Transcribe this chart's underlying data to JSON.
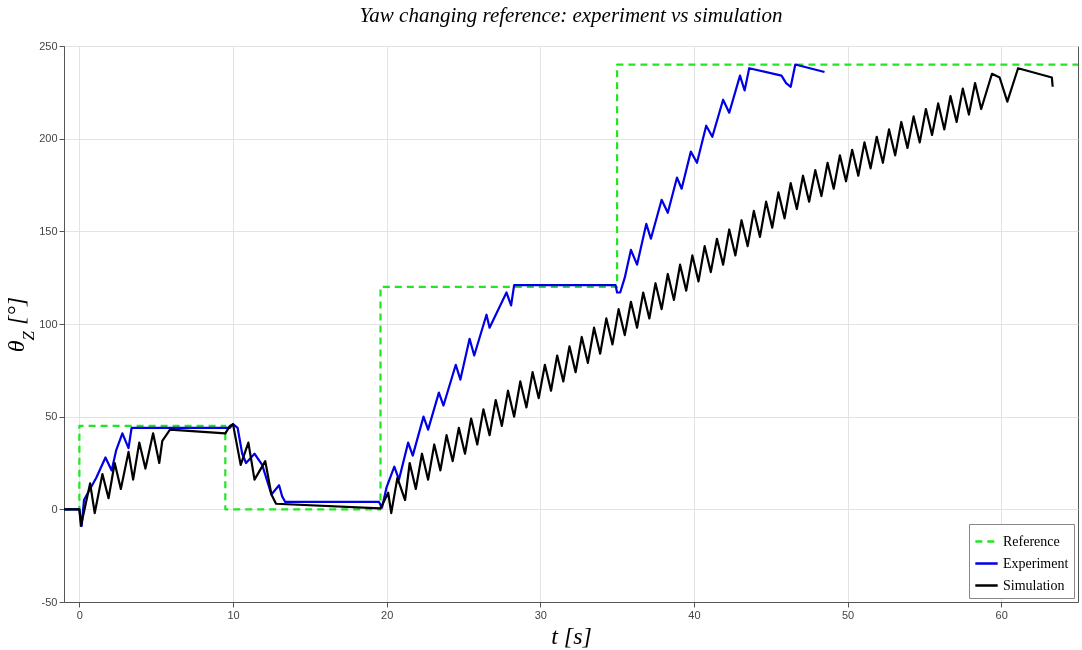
{
  "chart_data": {
    "type": "line",
    "title": "Yaw changing reference: experiment vs simulation",
    "xlabel": "t [s]",
    "ylabel": "θ$_{Z}$ [°]",
    "xlim": [
      -1,
      65
    ],
    "xticks": [
      0,
      10,
      20,
      30,
      40,
      50,
      60
    ],
    "ylim": [
      -50,
      250
    ],
    "yticks": [
      -50,
      0,
      50,
      100,
      150,
      200,
      250
    ],
    "grid": true,
    "legend": "bottom right",
    "series": [
      {
        "name": "Reference",
        "color": "#22e622",
        "line_style": "dashed",
        "x": [
          -1,
          0,
          0,
          9.5,
          9.5,
          19.6,
          19.6,
          35,
          35,
          65
        ],
        "values": [
          0,
          0,
          45,
          45,
          0,
          0,
          120,
          120,
          240,
          240
        ]
      },
      {
        "name": "Experiment",
        "color": "#0000e6",
        "line_style": "solid",
        "x": [
          -1,
          0,
          0.15,
          0.3,
          1.1,
          1.7,
          2.1,
          2.4,
          2.8,
          3.2,
          3.4,
          9.8,
          10,
          10.3,
          10.6,
          10.85,
          11.4,
          11.9,
          12.5,
          13,
          13.2,
          13.4,
          19.5,
          19.7,
          20,
          20.5,
          20.8,
          21.4,
          21.7,
          22.4,
          22.7,
          23.4,
          23.7,
          24.5,
          24.8,
          25.4,
          25.7,
          26.5,
          26.7,
          27.8,
          28.1,
          28.3,
          28.6,
          34.9,
          35,
          35.2,
          35.5,
          35.9,
          36.3,
          36.9,
          37.2,
          37.9,
          38.3,
          38.9,
          39.2,
          39.8,
          40.2,
          40.8,
          41.2,
          41.9,
          42.3,
          43,
          43.3,
          43.6,
          45.7,
          46,
          46.3,
          46.6,
          48.5
        ],
        "values": [
          0,
          0,
          -9,
          5,
          17,
          28,
          21,
          32,
          41,
          33,
          44,
          44,
          46,
          44,
          30,
          25,
          30,
          24,
          8,
          13,
          7,
          4,
          4,
          1,
          12,
          23,
          16,
          36,
          29,
          50,
          43,
          63,
          56,
          78,
          70,
          92,
          83,
          105,
          98,
          117,
          110,
          121,
          121,
          121,
          117,
          117,
          125,
          140,
          132,
          154,
          146,
          167,
          160,
          179,
          173,
          193,
          187,
          207,
          201,
          221,
          214,
          234,
          226,
          238,
          234,
          230,
          228,
          240,
          236
        ]
      },
      {
        "name": "Simulation",
        "color": "#000000",
        "line_style": "solid",
        "x": [
          -1,
          0,
          0.1,
          0.7,
          1,
          1.5,
          1.9,
          2.3,
          2.7,
          3.2,
          3.5,
          3.9,
          4.3,
          4.8,
          5.2,
          5.4,
          5.9,
          9.5,
          9.8,
          10,
          10.5,
          11,
          11.4,
          12.1,
          12.5,
          12.8,
          19.6,
          20.1,
          20.3,
          20.7,
          21.2,
          21.5,
          21.9,
          22.3,
          22.7,
          23.1,
          23.5,
          23.9,
          24.3,
          24.7,
          25.1,
          25.5,
          25.9,
          26.3,
          26.7,
          27.1,
          27.5,
          27.9,
          28.3,
          28.7,
          29.1,
          29.5,
          29.9,
          30.3,
          30.7,
          31.1,
          31.5,
          31.9,
          32.3,
          32.7,
          33.1,
          33.5,
          33.9,
          34.3,
          34.7,
          35.1,
          35.5,
          35.9,
          36.3,
          36.7,
          37.1,
          37.5,
          37.9,
          38.3,
          38.7,
          39.1,
          39.5,
          39.9,
          40.3,
          40.7,
          41.1,
          41.5,
          41.9,
          42.3,
          42.7,
          43.1,
          43.5,
          43.9,
          44.3,
          44.7,
          45.1,
          45.5,
          45.9,
          46.3,
          46.7,
          47.1,
          47.5,
          47.9,
          48.3,
          48.7,
          49.1,
          49.5,
          49.9,
          50.3,
          50.7,
          51.1,
          51.5,
          51.9,
          52.3,
          52.7,
          53.1,
          53.5,
          53.9,
          54.3,
          54.7,
          55.1,
          55.5,
          55.9,
          56.3,
          56.7,
          57.1,
          57.5,
          57.9,
          58.3,
          58.7,
          59.4,
          59.9,
          60.4,
          61.1,
          63.3,
          63.35
        ],
        "values": [
          0,
          0,
          -9,
          14,
          -2,
          19,
          6,
          25,
          11,
          31,
          16,
          36,
          22,
          41,
          25,
          37,
          43,
          41,
          45,
          46,
          24,
          36,
          16,
          26,
          8,
          3,
          0.5,
          9,
          -2,
          17,
          5,
          25,
          11,
          30,
          16,
          35,
          21,
          40,
          26,
          44,
          30,
          49,
          35,
          54,
          40,
          59,
          45,
          64,
          50,
          69,
          55,
          74,
          60,
          78,
          64,
          83,
          69,
          88,
          74,
          93,
          79,
          98,
          84,
          103,
          89,
          108,
          94,
          112,
          98,
          117,
          103,
          122,
          108,
          127,
          113,
          132,
          118,
          137,
          123,
          142,
          128,
          146,
          132,
          151,
          137,
          156,
          142,
          161,
          147,
          166,
          152,
          171,
          157,
          176,
          162,
          180,
          166,
          183,
          169,
          187,
          173,
          191,
          177,
          194,
          180,
          198,
          184,
          201,
          187,
          205,
          191,
          209,
          195,
          212,
          198,
          216,
          202,
          219,
          205,
          223,
          209,
          227,
          213,
          230,
          216,
          235,
          233,
          220,
          238,
          233,
          228
        ]
      }
    ]
  }
}
